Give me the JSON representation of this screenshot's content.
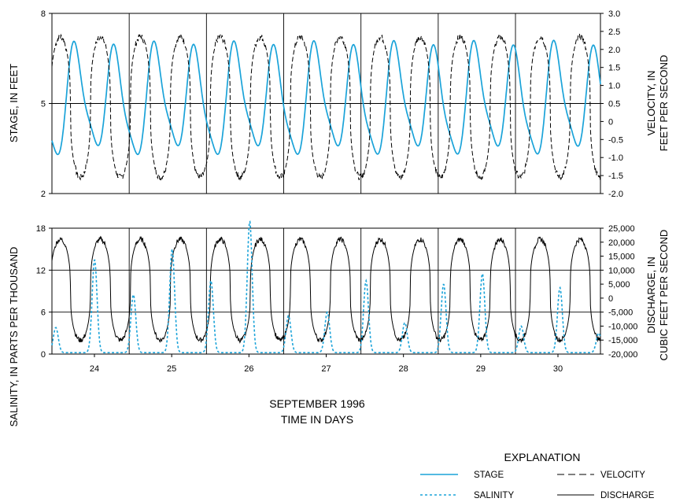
{
  "chart_data": [
    {
      "type": "line",
      "panel": "top",
      "x": [
        23.45,
        30.55
      ],
      "xlim": [
        23.45,
        30.55
      ],
      "left_axis": {
        "label": "STAGE, IN FEET",
        "ylim": [
          2,
          8
        ],
        "ticks": [
          2,
          5,
          8
        ],
        "tick_labels": [
          "2",
          "5",
          "8"
        ]
      },
      "right_axis": {
        "label_line1": "VELOCITY, IN",
        "label_line2": "FEET PER SECOND",
        "ylim": [
          -2.0,
          3.0
        ],
        "ticks": [
          -2.0,
          -1.5,
          -1.0,
          -0.5,
          0,
          0.5,
          1.0,
          1.5,
          2.0,
          2.5,
          3.0
        ],
        "tick_labels": [
          "-2.0",
          "-1.5",
          "-1.0",
          "-0.5",
          "0",
          "0.5",
          "1.0",
          "1.5",
          "2.0",
          "2.5",
          "3.0"
        ]
      },
      "series": [
        {
          "name": "STAGE",
          "axis": "left",
          "color": "#1aa3d9",
          "style": "solid",
          "mean": 5.05,
          "amplitude": 1.85,
          "period_days": 0.5175,
          "peak_at": 23.75
        },
        {
          "name": "VELOCITY",
          "axis": "right",
          "color": "#000000",
          "style": "dashed",
          "high": 2.35,
          "low": -1.55,
          "period_days": 0.5175,
          "flood_peak_at": 23.56
        }
      ],
      "grid": {
        "horizontal_at": [
          5
        ],
        "vertical_at": [
          24.45,
          25.45,
          26.45,
          27.45,
          28.45,
          29.45
        ]
      }
    },
    {
      "type": "line",
      "panel": "bottom",
      "x": [
        23.45,
        30.55
      ],
      "xlim": [
        23.45,
        30.55
      ],
      "x_ticks": [
        24,
        25,
        26,
        27,
        28,
        29,
        30
      ],
      "x_tick_labels": [
        "24",
        "25",
        "26",
        "27",
        "28",
        "29",
        "30"
      ],
      "left_axis": {
        "label": "SALINITY, IN PARTS PER THOUSAND",
        "ylim": [
          0,
          18
        ],
        "ticks": [
          0,
          6,
          12,
          18
        ],
        "tick_labels": [
          "0",
          "6",
          "12",
          "18"
        ]
      },
      "right_axis": {
        "label_line1": "DISCHARGE, IN",
        "label_line2": "CUBIC FEET PER SECOND",
        "ylim": [
          -20000,
          25000
        ],
        "ticks": [
          -20000,
          -15000,
          -10000,
          -5000,
          0,
          5000,
          10000,
          15000,
          20000,
          25000
        ],
        "tick_labels": [
          "-20,000",
          "-15,000",
          "-10,000",
          "-5,000",
          "0",
          "5,000",
          "10,000",
          "15,000",
          "20,000",
          "25,000"
        ]
      },
      "series": [
        {
          "name": "SALINITY",
          "axis": "left",
          "color": "#1aa3d9",
          "style": "dotted",
          "baseline": 0.2,
          "pulse_peaks": [
            3.8,
            13.5,
            8.5,
            15.0,
            10.5,
            19.0,
            5.5,
            6.0,
            10.5,
            4.5,
            10.0,
            11.5,
            4.0,
            9.5,
            3.0
          ]
        },
        {
          "name": "DISCHARGE",
          "axis": "right",
          "color": "#000000",
          "style": "solid",
          "high": 21000,
          "low": -15000,
          "period_days": 0.5175,
          "flood_peak_at": 23.56
        }
      ],
      "grid": {
        "horizontal_at": [
          6,
          12
        ],
        "vertical_at": [
          24.45,
          25.45,
          26.45,
          27.45,
          28.45,
          29.45
        ]
      }
    }
  ],
  "xlabel_line1": "SEPTEMBER 1996",
  "xlabel_line2": "TIME IN DAYS",
  "legend": {
    "title": "EXPLANATION",
    "items": [
      {
        "label": "STAGE",
        "color": "#1aa3d9",
        "style": "solid"
      },
      {
        "label": "VELOCITY",
        "color": "#000000",
        "style": "dashed"
      },
      {
        "label": "SALINITY",
        "color": "#1aa3d9",
        "style": "dotted"
      },
      {
        "label": "DISCHARGE",
        "color": "#000000",
        "style": "solid"
      }
    ]
  }
}
